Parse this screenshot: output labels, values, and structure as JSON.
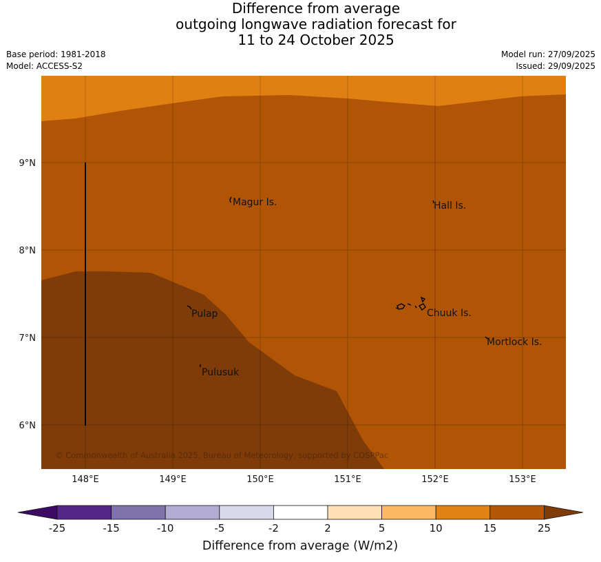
{
  "title": {
    "line1": "Difference from average",
    "line2": "outgoing longwave radiation forecast for",
    "line3": "11 to 24 October 2025"
  },
  "meta": {
    "base_period": "Base period: 1981-2018",
    "model": "Model: ACCESS-S2",
    "model_run": "Model run: 27/09/2025",
    "issued": "Issued: 29/09/2025"
  },
  "map": {
    "lat_labels": [
      "9°N",
      "8°N",
      "7°N",
      "6°N"
    ],
    "lon_labels": [
      "148°E",
      "149°E",
      "150°E",
      "151°E",
      "152°E",
      "153°E"
    ],
    "places": [
      "Magur Is.",
      "Hall Is.",
      "Pulap",
      "Chuuk Is.",
      "Mortlock Is.",
      "Pulusuk"
    ],
    "copyright": "© Commonwealth of Australia 2025, Bureau of Meteorology, supported by COSPPac",
    "colors": {
      "band_10_15": "#e07f12",
      "band_15_25": "#b05506",
      "band_above_25": "#7f3b08"
    }
  },
  "colorbar": {
    "ticks": [
      "-25",
      "-15",
      "-10",
      "-5",
      "-2",
      "2",
      "5",
      "10",
      "15",
      "25"
    ],
    "colors": [
      "#3d0b63",
      "#542788",
      "#8073ac",
      "#b2abd2",
      "#d8daeb",
      "#ffffff",
      "#fee0b6",
      "#fdb863",
      "#e08214",
      "#b35806",
      "#7f3b08"
    ],
    "label": "Difference from average (W/m2)"
  }
}
